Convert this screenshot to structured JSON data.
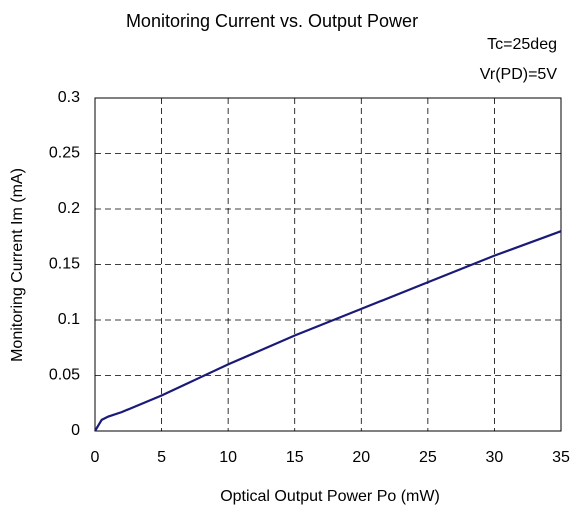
{
  "chart_data": {
    "type": "line",
    "title": "Monitoring Current vs. Output Power",
    "annotations": [
      "Tc=25deg",
      "Vr(PD)=5V"
    ],
    "x_label": "Optical Output Power  Po (mW)",
    "y_label": "Monitoring Current Im (mA)",
    "x": [
      0,
      0.3,
      0.5,
      1,
      2,
      3,
      5,
      7.5,
      10,
      15,
      20,
      25,
      30,
      35
    ],
    "series": [
      {
        "name": "Im",
        "color": "#1a1a78",
        "values": [
          0,
          0.006,
          0.01,
          0.013,
          0.017,
          0.022,
          0.032,
          0.046,
          0.06,
          0.086,
          0.11,
          0.134,
          0.158,
          0.18
        ]
      }
    ],
    "xlim": [
      0,
      35
    ],
    "xticks": [
      0,
      5,
      10,
      15,
      20,
      25,
      30,
      35
    ],
    "ylim": [
      0,
      0.3
    ],
    "yticks": [
      0,
      0.05,
      0.1,
      0.15,
      0.2,
      0.25,
      0.3
    ],
    "grid": true
  }
}
